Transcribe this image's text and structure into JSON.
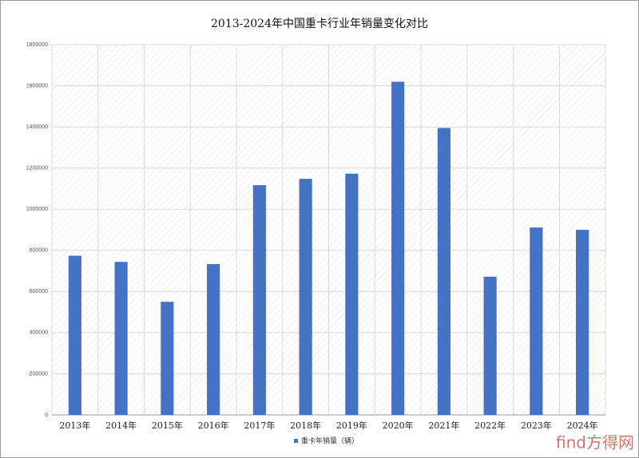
{
  "chart_data": {
    "type": "bar",
    "title": "2013-2024年中国重卡行业年销量变化对比",
    "categories": [
      "2013年",
      "2014年",
      "2015年",
      "2016年",
      "2017年",
      "2018年",
      "2019年",
      "2020年",
      "2021年",
      "2022年",
      "2023年",
      "2024年"
    ],
    "series": [
      {
        "name": "重卡年销量（辆）",
        "color": "#4472c4",
        "values": [
          774000,
          744000,
          550000,
          733000,
          1117000,
          1148000,
          1173000,
          1620000,
          1395000,
          672000,
          911000,
          900000
        ]
      }
    ],
    "ylim": [
      0,
      1800000
    ],
    "yticks": [
      0,
      200000,
      400000,
      600000,
      800000,
      1000000,
      1200000,
      1400000,
      1600000,
      1800000
    ],
    "grid": true,
    "legend": "bottom",
    "watermark": "find方得网"
  }
}
